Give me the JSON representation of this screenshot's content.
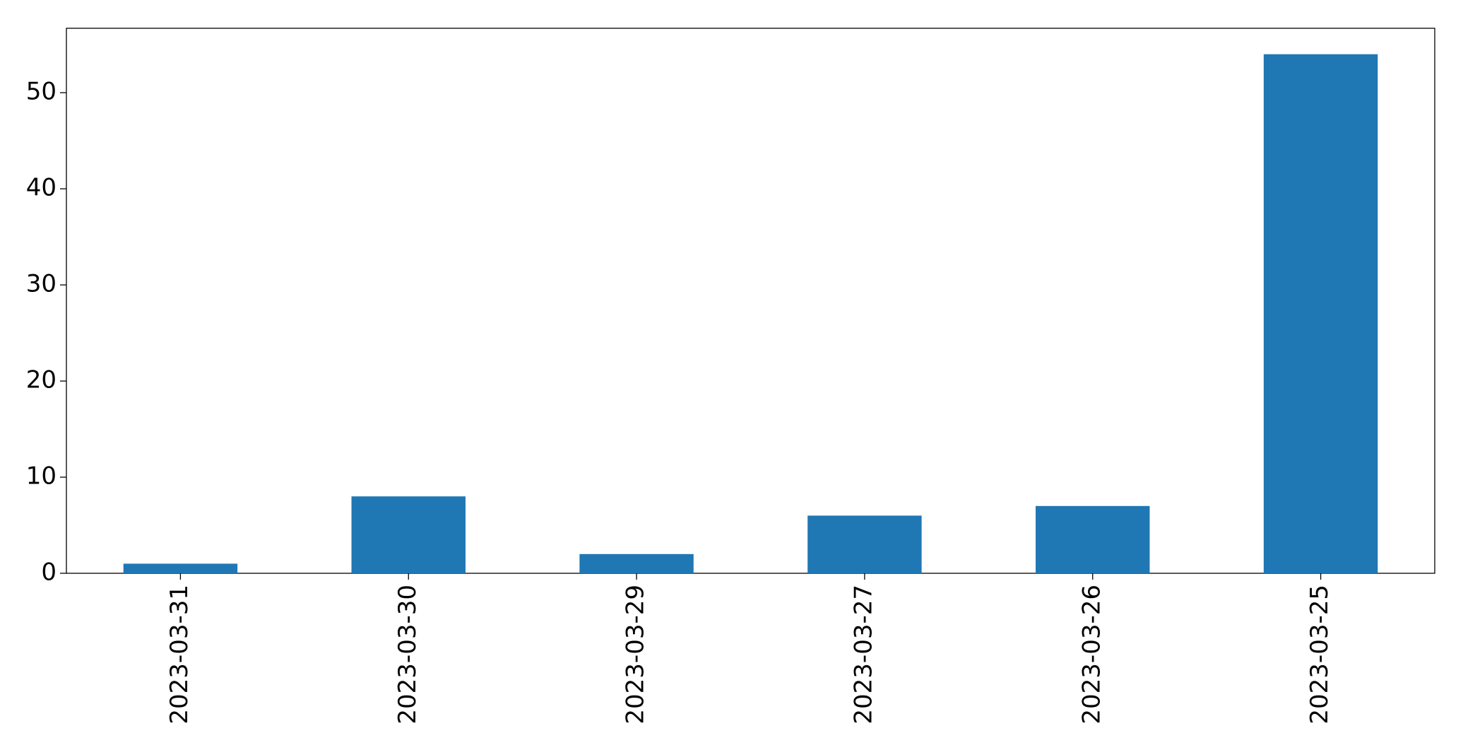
{
  "chart_data": {
    "type": "bar",
    "categories": [
      "2023-03-31",
      "2023-03-30",
      "2023-03-29",
      "2023-03-27",
      "2023-03-26",
      "2023-03-25"
    ],
    "values": [
      1,
      8,
      2,
      6,
      7,
      54
    ],
    "color": "#1f77b4",
    "ylim": [
      0,
      56.7
    ],
    "yticks": [
      0,
      10,
      20,
      30,
      40,
      50
    ],
    "grid": false
  }
}
